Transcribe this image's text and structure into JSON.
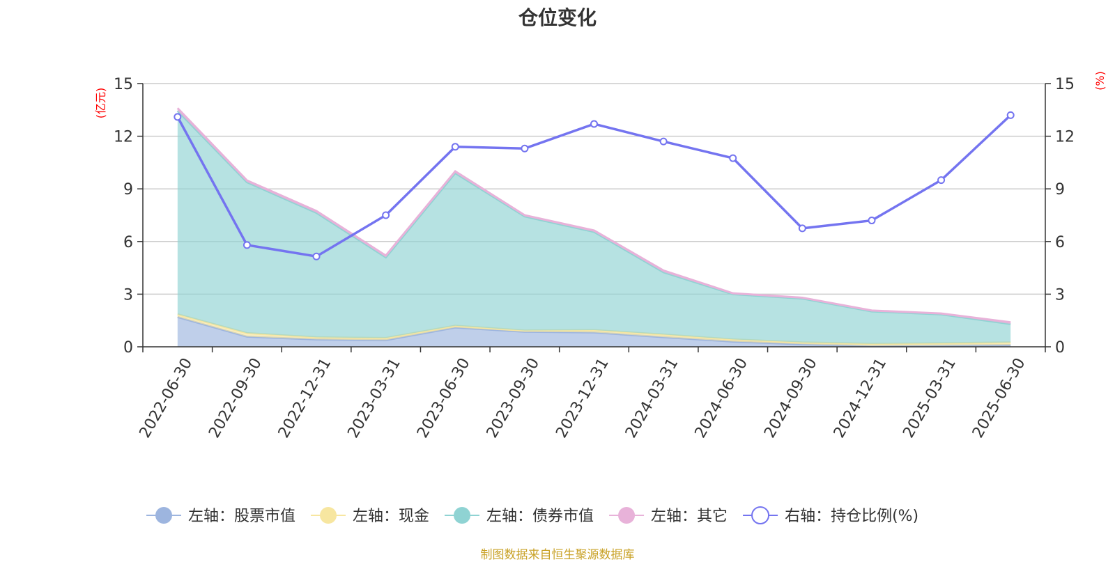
{
  "title": "仓位变化",
  "source": "制图数据来自恒生聚源数据库",
  "chart_data": {
    "type": "area",
    "categories": [
      "2022-06-30",
      "2022-09-30",
      "2022-12-31",
      "2023-03-31",
      "2023-06-30",
      "2023-09-30",
      "2023-12-31",
      "2024-03-31",
      "2024-06-30",
      "2024-09-30",
      "2024-12-31",
      "2025-03-31",
      "2025-06-30"
    ],
    "left_axis": {
      "unit": "(亿元)",
      "ylim": [
        0,
        15
      ],
      "ticks": [
        "0",
        "3",
        "6",
        "9",
        "12",
        "15"
      ]
    },
    "right_axis": {
      "unit": "(%)",
      "ylim": [
        0,
        15
      ],
      "ticks": [
        "0",
        "3",
        "6",
        "9",
        "12",
        "15"
      ]
    },
    "stacked": true,
    "grid": true,
    "legend_position": "bottom",
    "series": [
      {
        "name": "左轴：股票市值",
        "axis": "left",
        "kind": "area",
        "color": "#9db5df",
        "values": [
          1.7,
          0.58,
          0.42,
          0.38,
          1.1,
          0.86,
          0.82,
          0.55,
          0.3,
          0.15,
          0.05,
          0.07,
          0.1
        ]
      },
      {
        "name": "左轴：现金",
        "axis": "left",
        "kind": "area",
        "color": "#f7e6a0",
        "values": [
          0.15,
          0.2,
          0.12,
          0.12,
          0.1,
          0.07,
          0.13,
          0.15,
          0.12,
          0.1,
          0.12,
          0.13,
          0.15
        ]
      },
      {
        "name": "左轴：债券市值",
        "axis": "left",
        "kind": "area",
        "color": "#8fd3d3",
        "values": [
          11.6,
          8.6,
          7.1,
          4.6,
          8.7,
          6.5,
          5.6,
          3.55,
          2.58,
          2.5,
          1.85,
          1.65,
          1.05
        ]
      },
      {
        "name": "左轴：其它",
        "axis": "left",
        "kind": "area",
        "color": "#e8b2d9",
        "values": [
          0.15,
          0.1,
          0.1,
          0.1,
          0.1,
          0.07,
          0.08,
          0.1,
          0.05,
          0.05,
          0.05,
          0.05,
          0.1
        ]
      },
      {
        "name": "右轴：持仓比例(%)",
        "axis": "right",
        "kind": "line",
        "color": "#7474f0",
        "values": [
          13.1,
          5.8,
          5.15,
          7.5,
          11.4,
          11.3,
          12.7,
          11.7,
          10.75,
          6.75,
          7.2,
          9.5,
          13.2
        ]
      }
    ]
  }
}
